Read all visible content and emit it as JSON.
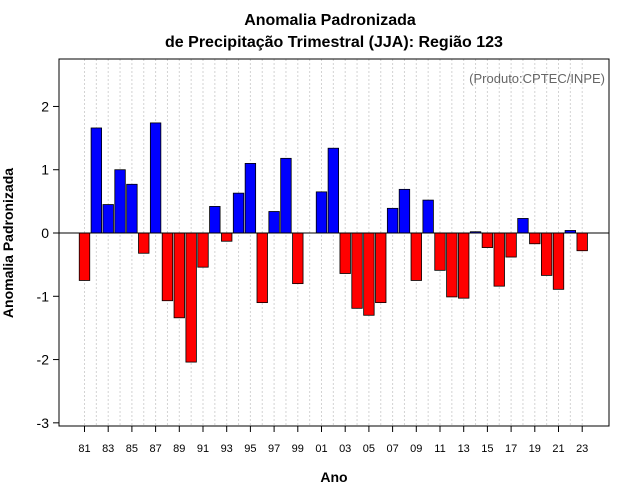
{
  "chart_data": {
    "type": "bar",
    "title": "Anomalia Padronizada",
    "subtitle": "de Precipitação Trimestral (JJA): Região 123",
    "credit": "(Produto:CPTEC/INPE)",
    "xlabel": "Ano",
    "ylabel": "Anomalia Padronizada",
    "ylim": [
      -3.05,
      2.75
    ],
    "yticks": [
      -3,
      -2,
      -1,
      0,
      1,
      2
    ],
    "ytick_labels": [
      "-3",
      "-2",
      "-1",
      "0",
      "1",
      "2"
    ],
    "xtick_labels": [
      "81",
      "83",
      "85",
      "87",
      "89",
      "91",
      "93",
      "95",
      "97",
      "99",
      "01",
      "03",
      "05",
      "07",
      "09",
      "11",
      "13",
      "15",
      "17",
      "19",
      "21",
      "23"
    ],
    "xtick_years": [
      1981,
      1983,
      1985,
      1987,
      1989,
      1991,
      1993,
      1995,
      1997,
      1999,
      2001,
      2003,
      2005,
      2007,
      2009,
      2011,
      2013,
      2015,
      2017,
      2019,
      2021,
      2023
    ],
    "grid": true,
    "colors": {
      "positive": "#0000ff",
      "negative": "#ff0000",
      "grid": "#d3d3d3",
      "credit": "#666666"
    },
    "categories": [
      1981,
      1982,
      1983,
      1984,
      1985,
      1986,
      1987,
      1988,
      1989,
      1990,
      1991,
      1992,
      1993,
      1994,
      1995,
      1996,
      1997,
      1998,
      1999,
      2000,
      2001,
      2002,
      2003,
      2004,
      2005,
      2006,
      2007,
      2008,
      2009,
      2010,
      2011,
      2012,
      2013,
      2014,
      2015,
      2016,
      2017,
      2018,
      2019,
      2020,
      2021,
      2022,
      2023
    ],
    "values": [
      -0.75,
      1.66,
      0.45,
      1.0,
      0.77,
      -0.32,
      1.74,
      -1.07,
      -1.34,
      -2.04,
      -0.54,
      0.42,
      -0.13,
      0.63,
      1.1,
      -1.1,
      0.34,
      1.18,
      -0.8,
      0.0,
      0.65,
      1.34,
      -0.64,
      -1.19,
      -1.3,
      -1.1,
      0.39,
      0.69,
      -0.75,
      0.52,
      -0.59,
      -1.01,
      -1.03,
      0.02,
      -0.23,
      -0.84,
      -0.38,
      0.23,
      -0.17,
      -0.67,
      -0.89,
      0.04,
      -0.28
    ]
  }
}
